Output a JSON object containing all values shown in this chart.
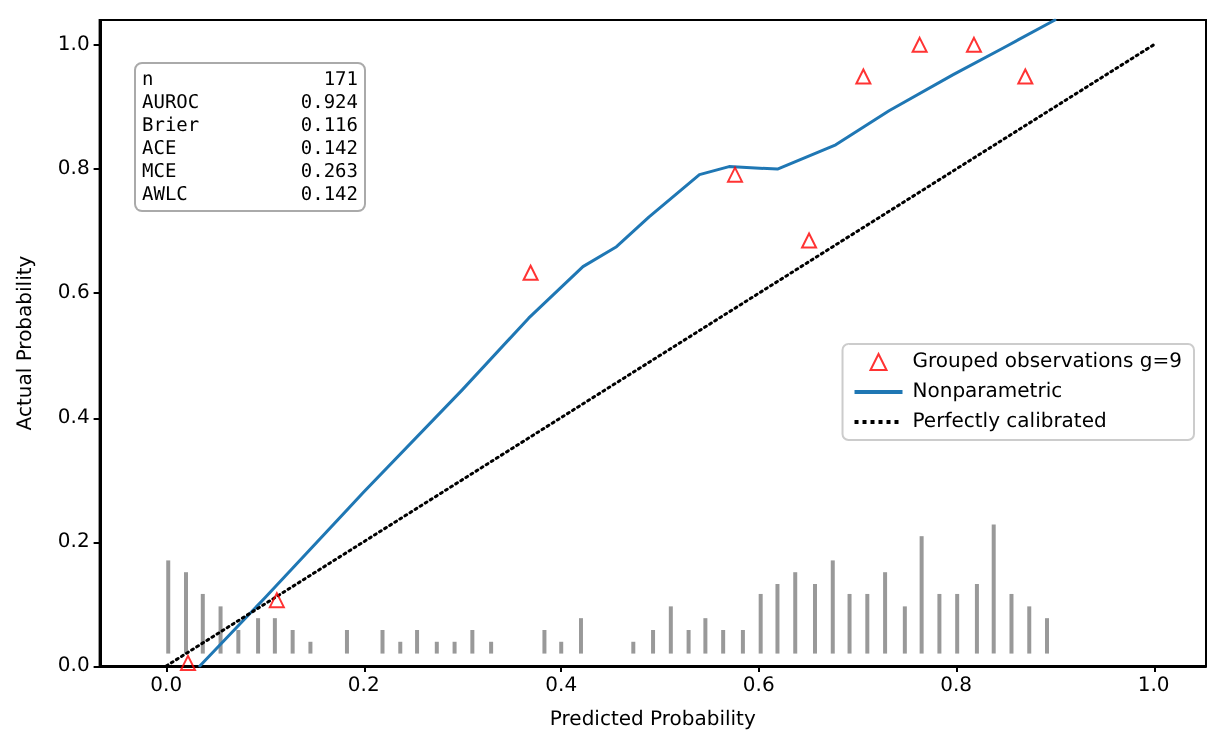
{
  "chart_data": {
    "type": "line",
    "xlabel": "Predicted Probability",
    "ylabel": "Actual Probability",
    "xlim": [
      -0.0675,
      1.053
    ],
    "ylim": [
      0,
      1.04
    ],
    "xticks": [
      {
        "value": 0,
        "label": "0.0"
      },
      {
        "value": 0.2,
        "label": "0.2"
      },
      {
        "value": 0.4,
        "label": "0.4"
      },
      {
        "value": 0.6,
        "label": "0.6"
      },
      {
        "value": 0.8,
        "label": "0.8"
      },
      {
        "value": 1,
        "label": "1.0"
      }
    ],
    "yticks": [
      {
        "value": 0,
        "label": "0.0"
      },
      {
        "value": 0.2,
        "label": "0.2"
      },
      {
        "value": 0.4,
        "label": "0.4"
      },
      {
        "value": 0.6,
        "label": "0.6"
      },
      {
        "value": 0.8,
        "label": "0.8"
      },
      {
        "value": 1,
        "label": "1.0"
      }
    ],
    "grid": false,
    "legend": "right",
    "annotations": [
      "n 171",
      "AUROC 0.924",
      "Brier 0.116",
      "ACE 0.142",
      "MCE 0.263",
      "AWLC 0.142"
    ],
    "series": [
      {
        "type": "bar",
        "color": "#999999",
        "x": [
          0.002,
          0.02,
          0.037,
          0.055,
          0.073,
          0.093,
          0.11,
          0.128,
          0.146,
          0.183,
          0.219,
          0.237,
          0.254,
          0.274,
          0.292,
          0.31,
          0.329,
          0.383,
          0.4,
          0.42,
          0.473,
          0.493,
          0.511,
          0.529,
          0.546,
          0.564,
          0.584,
          0.602,
          0.619,
          0.637,
          0.657,
          0.675,
          0.692,
          0.71,
          0.728,
          0.748,
          0.765,
          0.783,
          0.801,
          0.821,
          0.838,
          0.856,
          0.874,
          0.892
        ],
        "base": [
          0.02,
          0.02,
          0.02,
          0.02,
          0.02,
          0.02,
          0.02,
          0.02,
          0.02,
          0.02,
          0.02,
          0.02,
          0.02,
          0.02,
          0.02,
          0.02,
          0.02,
          0.02,
          0.02,
          0.02,
          0.02,
          0.02,
          0.02,
          0.02,
          0.02,
          0.02,
          0.02,
          0.02,
          0.02,
          0.02,
          0.02,
          0.02,
          0.02,
          0.02,
          0.02,
          0.02,
          0.02,
          0.02,
          0.02,
          0.02,
          0.02,
          0.02,
          0.02,
          0.02
        ],
        "values": [
          0.15,
          0.131,
          0.096,
          0.076,
          0.038,
          0.057,
          0.057,
          0.038,
          0.019,
          0.038,
          0.038,
          0.019,
          0.038,
          0.019,
          0.019,
          0.038,
          0.019,
          0.038,
          0.019,
          0.057,
          0.019,
          0.038,
          0.076,
          0.038,
          0.057,
          0.038,
          0.038,
          0.096,
          0.112,
          0.131,
          0.112,
          0.15,
          0.096,
          0.096,
          0.131,
          0.076,
          0.189,
          0.096,
          0.096,
          0.112,
          0.208,
          0.096,
          0.076,
          0.057
        ]
      },
      {
        "type": "scatter",
        "name": "Grouped observations g=9",
        "color": "#ff0000",
        "marker": "triangle",
        "x": [
          0.022,
          0.112,
          0.369,
          0.576,
          0.651,
          0.706,
          0.763,
          0.818,
          0.87
        ],
        "values": [
          0.005,
          0.106,
          0.633,
          0.791,
          0.685,
          0.949,
          1.0,
          1.0,
          0.949
        ]
      },
      {
        "name": "Nonparametric",
        "color": "#1f77b4",
        "line_style": "solid",
        "x": [
          0.034,
          0.1,
          0.2,
          0.3,
          0.367,
          0.422,
          0.456,
          0.489,
          0.54,
          0.57,
          0.619,
          0.678,
          0.732,
          0.797,
          0.85,
          0.9
        ],
        "values": [
          0,
          0.11,
          0.28,
          0.445,
          0.56,
          0.643,
          0.675,
          0.723,
          0.791,
          0.804,
          0.8,
          0.839,
          0.894,
          0.952,
          0.997,
          1.04
        ]
      },
      {
        "name": "Perfectly calibrated",
        "color": "#000000",
        "line_style": "dotted",
        "x": [
          0,
          1
        ],
        "values": [
          0,
          1
        ]
      }
    ]
  }
}
